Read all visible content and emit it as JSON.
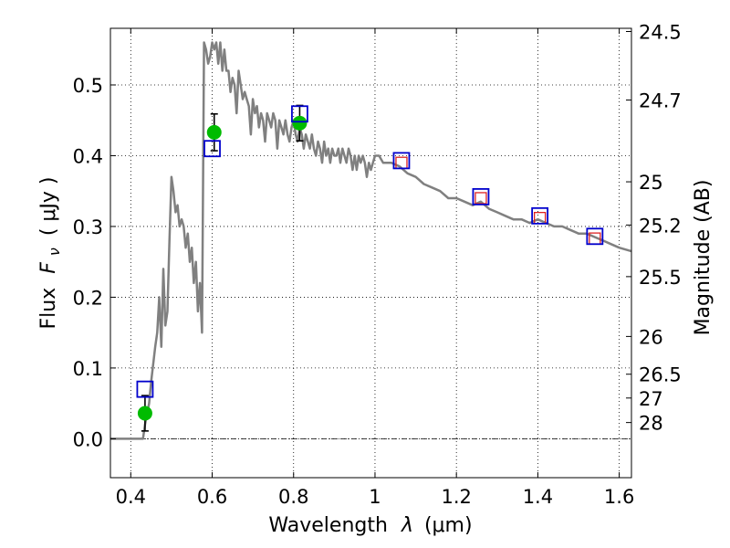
{
  "chart_data": {
    "type": "scatter",
    "xlabel": "Wavelength",
    "xlabel_symbol": "λ",
    "xlabel_unit": "(μm)",
    "ylabel": "Flux",
    "ylabel_symbol": "F",
    "ylabel_subscript": "ν",
    "ylabel_unit": "( μJy )",
    "y2label": "Magnitude (AB)",
    "xlim": [
      0.35,
      1.63
    ],
    "ylim": [
      -0.055,
      0.58
    ],
    "grid": true,
    "grid_style": "dotted",
    "x_ticks": [
      0.4,
      0.6,
      0.8,
      1.0,
      1.2,
      1.4,
      1.6
    ],
    "x_tick_labels": [
      "0.4",
      "0.6",
      "0.8",
      "1",
      "1.2",
      "1.4",
      "1.6"
    ],
    "y_ticks": [
      0.0,
      0.1,
      0.2,
      0.3,
      0.4,
      0.5
    ],
    "y_tick_labels": [
      "0.0",
      "0.1",
      "0.2",
      "0.3",
      "0.4",
      "0.5"
    ],
    "mag_ticks": [
      {
        "mag": 24.5,
        "label": "24.5"
      },
      {
        "mag": 24.7,
        "label": "24.7"
      },
      {
        "mag": 25.0,
        "label": "25"
      },
      {
        "mag": 25.2,
        "label": "25.2"
      },
      {
        "mag": 25.5,
        "label": "25.5"
      },
      {
        "mag": 26.0,
        "label": "26"
      },
      {
        "mag": 26.5,
        "label": "26.5"
      },
      {
        "mag": 27.0,
        "label": "27"
      },
      {
        "mag": 28.0,
        "label": "28"
      }
    ],
    "colors": {
      "spectrum": "#808080",
      "observed": "#00bb00",
      "model": "#0000cc",
      "model_inner": "#dd2222",
      "errorbar": "#000000",
      "zero_line": "#000000"
    },
    "series": [
      {
        "style": "line",
        "x": [
          0.35,
          0.43,
          0.435,
          0.445,
          0.45,
          0.46,
          0.465,
          0.47,
          0.475,
          0.48,
          0.485,
          0.49,
          0.495,
          0.5,
          0.505,
          0.51,
          0.515,
          0.52,
          0.525,
          0.53,
          0.535,
          0.54,
          0.545,
          0.55,
          0.555,
          0.56,
          0.565,
          0.57,
          0.575,
          0.58,
          0.585,
          0.59,
          0.595,
          0.6,
          0.605,
          0.61,
          0.615,
          0.62,
          0.625,
          0.63,
          0.635,
          0.64,
          0.645,
          0.65,
          0.655,
          0.66,
          0.665,
          0.67,
          0.675,
          0.68,
          0.685,
          0.69,
          0.695,
          0.7,
          0.705,
          0.71,
          0.715,
          0.72,
          0.725,
          0.73,
          0.735,
          0.74,
          0.745,
          0.75,
          0.755,
          0.76,
          0.765,
          0.77,
          0.775,
          0.78,
          0.785,
          0.79,
          0.795,
          0.8,
          0.805,
          0.81,
          0.815,
          0.82,
          0.825,
          0.83,
          0.835,
          0.84,
          0.845,
          0.85,
          0.855,
          0.86,
          0.865,
          0.87,
          0.875,
          0.88,
          0.885,
          0.89,
          0.895,
          0.9,
          0.905,
          0.91,
          0.915,
          0.92,
          0.925,
          0.93,
          0.935,
          0.94,
          0.945,
          0.95,
          0.955,
          0.96,
          0.965,
          0.97,
          0.975,
          0.98,
          0.985,
          0.99,
          0.995,
          1.0,
          1.01,
          1.02,
          1.04,
          1.06,
          1.08,
          1.1,
          1.12,
          1.14,
          1.16,
          1.18,
          1.2,
          1.22,
          1.24,
          1.26,
          1.28,
          1.3,
          1.32,
          1.34,
          1.36,
          1.38,
          1.4,
          1.42,
          1.44,
          1.46,
          1.48,
          1.5,
          1.52,
          1.54,
          1.56,
          1.58,
          1.6,
          1.63
        ],
        "y": [
          0.0,
          0.0,
          0.02,
          0.05,
          0.08,
          0.13,
          0.15,
          0.2,
          0.13,
          0.24,
          0.16,
          0.18,
          0.28,
          0.37,
          0.35,
          0.32,
          0.33,
          0.3,
          0.31,
          0.3,
          0.27,
          0.29,
          0.25,
          0.27,
          0.22,
          0.25,
          0.18,
          0.22,
          0.15,
          0.56,
          0.55,
          0.53,
          0.54,
          0.56,
          0.55,
          0.56,
          0.53,
          0.56,
          0.52,
          0.55,
          0.52,
          0.52,
          0.49,
          0.51,
          0.5,
          0.46,
          0.52,
          0.5,
          0.48,
          0.49,
          0.48,
          0.47,
          0.43,
          0.48,
          0.46,
          0.47,
          0.44,
          0.46,
          0.45,
          0.42,
          0.46,
          0.45,
          0.44,
          0.46,
          0.45,
          0.41,
          0.45,
          0.44,
          0.43,
          0.45,
          0.43,
          0.42,
          0.44,
          0.45,
          0.43,
          0.42,
          0.44,
          0.43,
          0.41,
          0.43,
          0.42,
          0.41,
          0.43,
          0.41,
          0.4,
          0.42,
          0.41,
          0.39,
          0.42,
          0.4,
          0.41,
          0.39,
          0.41,
          0.4,
          0.4,
          0.41,
          0.39,
          0.41,
          0.4,
          0.39,
          0.41,
          0.4,
          0.38,
          0.4,
          0.38,
          0.4,
          0.39,
          0.4,
          0.39,
          0.37,
          0.39,
          0.38,
          0.39,
          0.4,
          0.4,
          0.39,
          0.39,
          0.385,
          0.375,
          0.37,
          0.36,
          0.355,
          0.35,
          0.34,
          0.34,
          0.335,
          0.33,
          0.335,
          0.325,
          0.32,
          0.315,
          0.31,
          0.31,
          0.305,
          0.31,
          0.305,
          0.3,
          0.3,
          0.295,
          0.29,
          0.29,
          0.285,
          0.28,
          0.275,
          0.27,
          0.265
        ]
      },
      {
        "style": "points-errorbar",
        "x": [
          0.435,
          0.605,
          0.815
        ],
        "y": [
          0.036,
          0.433,
          0.446
        ],
        "yerr": [
          0.025,
          0.026,
          0.025
        ]
      },
      {
        "style": "open-square",
        "x": [
          0.435,
          0.6,
          0.815,
          1.065,
          1.26,
          1.405,
          1.54
        ],
        "y": [
          0.07,
          0.41,
          0.459,
          0.393,
          0.342,
          0.315,
          0.286
        ]
      },
      {
        "style": "inner-square",
        "x": [
          1.065,
          1.26,
          1.405,
          1.54
        ],
        "y": [
          0.39,
          0.34,
          0.312,
          0.283
        ]
      }
    ]
  }
}
